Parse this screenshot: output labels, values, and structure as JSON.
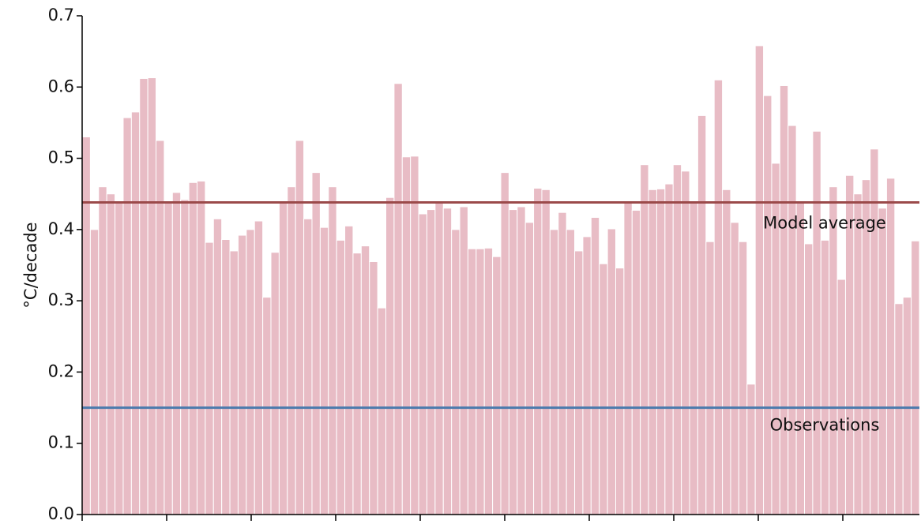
{
  "chart_data": {
    "type": "bar",
    "ylabel": "°C/decade",
    "values": [
      0.53,
      0.4,
      0.46,
      0.45,
      0.44,
      0.557,
      0.565,
      0.612,
      0.613,
      0.525,
      0.44,
      0.452,
      0.442,
      0.466,
      0.468,
      0.382,
      0.415,
      0.386,
      0.37,
      0.392,
      0.4,
      0.412,
      0.305,
      0.368,
      0.44,
      0.46,
      0.525,
      0.415,
      0.48,
      0.403,
      0.46,
      0.385,
      0.405,
      0.367,
      0.377,
      0.355,
      0.29,
      0.445,
      0.605,
      0.502,
      0.503,
      0.422,
      0.428,
      0.437,
      0.43,
      0.4,
      0.432,
      0.373,
      0.373,
      0.374,
      0.362,
      0.48,
      0.428,
      0.432,
      0.41,
      0.458,
      0.456,
      0.4,
      0.424,
      0.4,
      0.37,
      0.39,
      0.417,
      0.352,
      0.401,
      0.346,
      0.44,
      0.427,
      0.491,
      0.456,
      0.457,
      0.464,
      0.491,
      0.482,
      0.44,
      0.56,
      0.383,
      0.61,
      0.456,
      0.41,
      0.383,
      0.183,
      0.658,
      0.588,
      0.493,
      0.602,
      0.546,
      0.44,
      0.38,
      0.538,
      0.385,
      0.46,
      0.33,
      0.476,
      0.45,
      0.47,
      0.513,
      0.43,
      0.472,
      0.296,
      0.305,
      0.384
    ],
    "color": "#e8bcc5",
    "ylim": [
      0,
      0.7
    ],
    "yticks": [
      {
        "value": 0,
        "label": "0.0"
      },
      0.1,
      0.2,
      0.3,
      0.4,
      0.5,
      0.6,
      0.7
    ],
    "lines": [
      {
        "name": "Model average",
        "value": 0.438,
        "color": "#9b4a4a"
      },
      {
        "name": "Observations",
        "value": 0.15,
        "color": "#4a7aad"
      }
    ]
  }
}
